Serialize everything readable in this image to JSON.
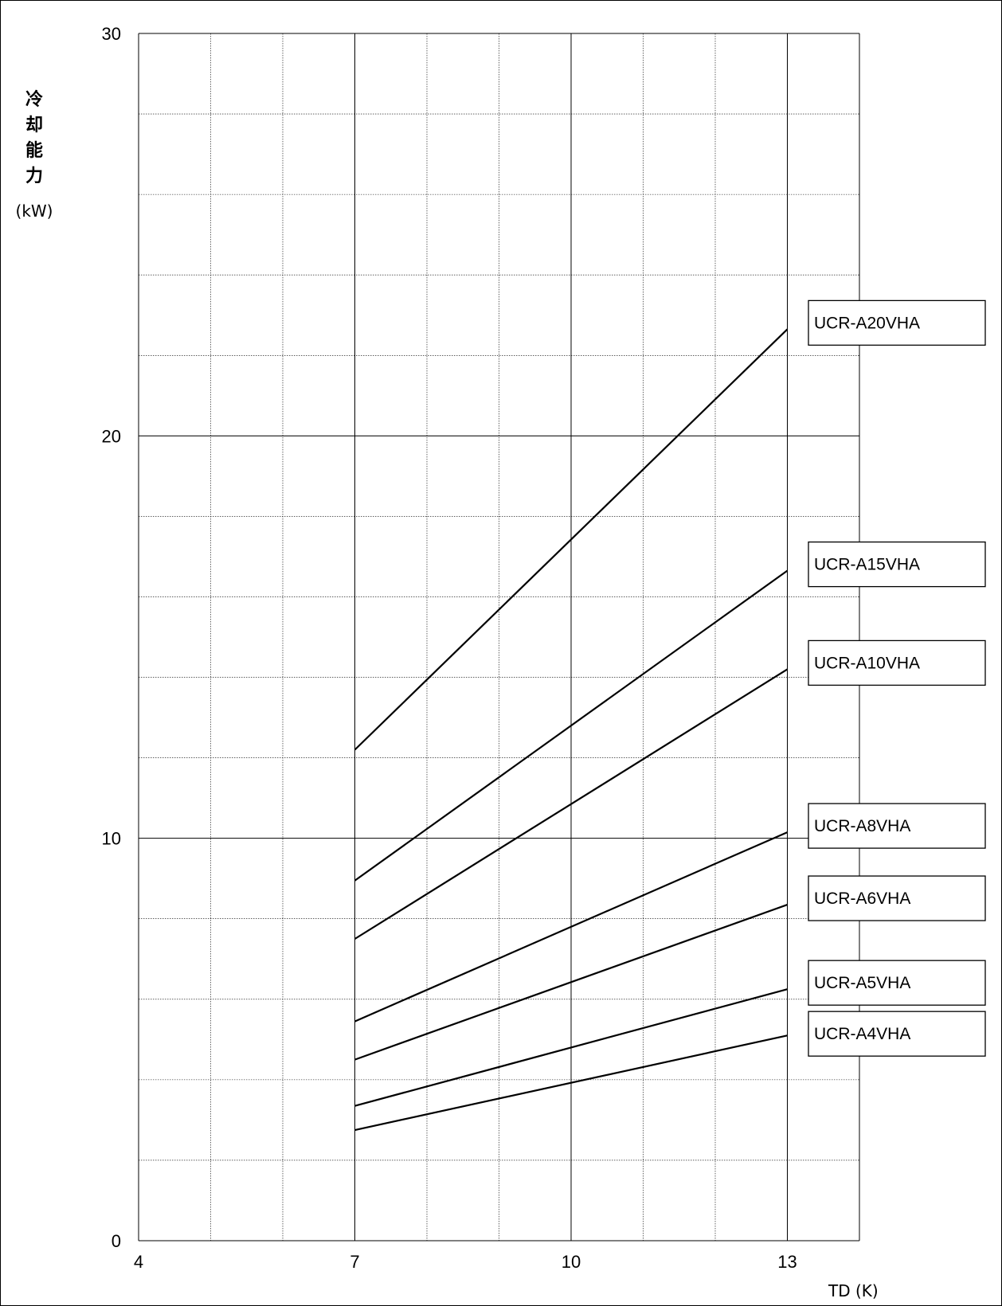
{
  "chart_data": {
    "type": "line",
    "title": "",
    "xlabel": "TD (K)",
    "ylabel_chars": [
      "冷",
      "却",
      "能",
      "力"
    ],
    "ylabel_unit": "(kW)",
    "xlim": [
      4,
      14
    ],
    "ylim": [
      0,
      30
    ],
    "x_ticks": [
      4,
      7,
      10,
      13
    ],
    "y_ticks": [
      0,
      10,
      20,
      30
    ],
    "x_grid_step": 1,
    "y_grid_step": 2,
    "grid": true,
    "legend": "right",
    "series": [
      {
        "name": "UCR-A20VHA",
        "x": [
          7,
          13
        ],
        "y": [
          12.2,
          22.65
        ]
      },
      {
        "name": "UCR-A15VHA",
        "x": [
          7,
          13
        ],
        "y": [
          8.95,
          16.65
        ]
      },
      {
        "name": "UCR-A10VHA",
        "x": [
          7,
          13
        ],
        "y": [
          7.5,
          14.2
        ]
      },
      {
        "name": "UCR-A8VHA",
        "x": [
          7,
          13
        ],
        "y": [
          5.45,
          10.15
        ]
      },
      {
        "name": "UCR-A6VHA",
        "x": [
          7,
          13
        ],
        "y": [
          4.5,
          8.35
        ]
      },
      {
        "name": "UCR-A5VHA",
        "x": [
          7,
          13
        ],
        "y": [
          3.35,
          6.25
        ]
      },
      {
        "name": "UCR-A4VHA",
        "x": [
          7,
          13
        ],
        "y": [
          2.75,
          5.1
        ]
      }
    ]
  }
}
